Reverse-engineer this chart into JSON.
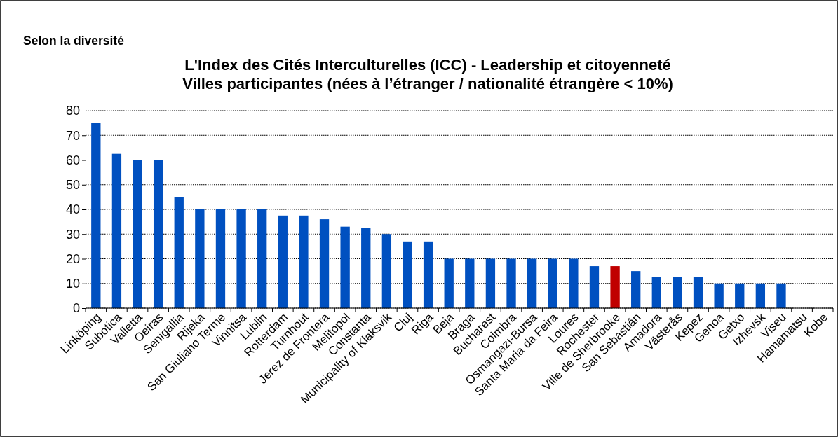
{
  "chart_data": {
    "type": "bar",
    "title": "L'Index des Cités Interculturelles (ICC) - Leadership et citoyenneté\nVilles participantes (nées à l’étranger / nationalité étrangère < 10%)",
    "annotations": [
      "Selon la diversité"
    ],
    "categories": [
      "Linköping",
      "Subotica",
      "Valletta",
      "Oeiras",
      "Senigallia",
      "Rijeka",
      "San Giuliano Terme",
      "Vinnitsa",
      "Lublin",
      "Rotterdam",
      "Turnhout",
      "Jerez de Frontera",
      "Melitopol",
      "Constanta",
      "Municipality of Klaksvik",
      "Cluj",
      "Riga",
      "Beja",
      "Braga",
      "Bucharest",
      "Coimbra",
      "Osmangazi-Bursa",
      "Santa Maria da Feira",
      "Loures",
      "Rochester",
      "Ville de Sherbrooke",
      "San Sebastián",
      "Amadora",
      "Västerås",
      "Kepez",
      "Genoa",
      "Getxo",
      "Izhevsk",
      "Viseu",
      "Hamamatsu",
      "Kobe"
    ],
    "values": [
      75,
      62.5,
      60,
      60,
      45,
      40,
      40,
      40,
      40,
      37.5,
      37.5,
      36,
      33,
      32.5,
      30,
      27,
      27,
      20,
      20,
      20,
      20,
      20,
      20,
      20,
      17,
      17,
      15,
      12.5,
      12.5,
      12.5,
      10,
      10,
      10,
      10,
      0,
      0
    ],
    "colors": [
      "#0050c0",
      "#0050c0",
      "#0050c0",
      "#0050c0",
      "#0050c0",
      "#0050c0",
      "#0050c0",
      "#0050c0",
      "#0050c0",
      "#0050c0",
      "#0050c0",
      "#0050c0",
      "#0050c0",
      "#0050c0",
      "#0050c0",
      "#0050c0",
      "#0050c0",
      "#0050c0",
      "#0050c0",
      "#0050c0",
      "#0050c0",
      "#0050c0",
      "#0050c0",
      "#0050c0",
      "#0050c0",
      "#c00000",
      "#0050c0",
      "#0050c0",
      "#0050c0",
      "#0050c0",
      "#0050c0",
      "#0050c0",
      "#0050c0",
      "#0050c0",
      "#0050c0",
      "#0050c0"
    ],
    "ylim": [
      0,
      80
    ],
    "yticks": [
      0,
      10,
      20,
      30,
      40,
      50,
      60,
      70,
      80
    ],
    "grid": "y"
  }
}
